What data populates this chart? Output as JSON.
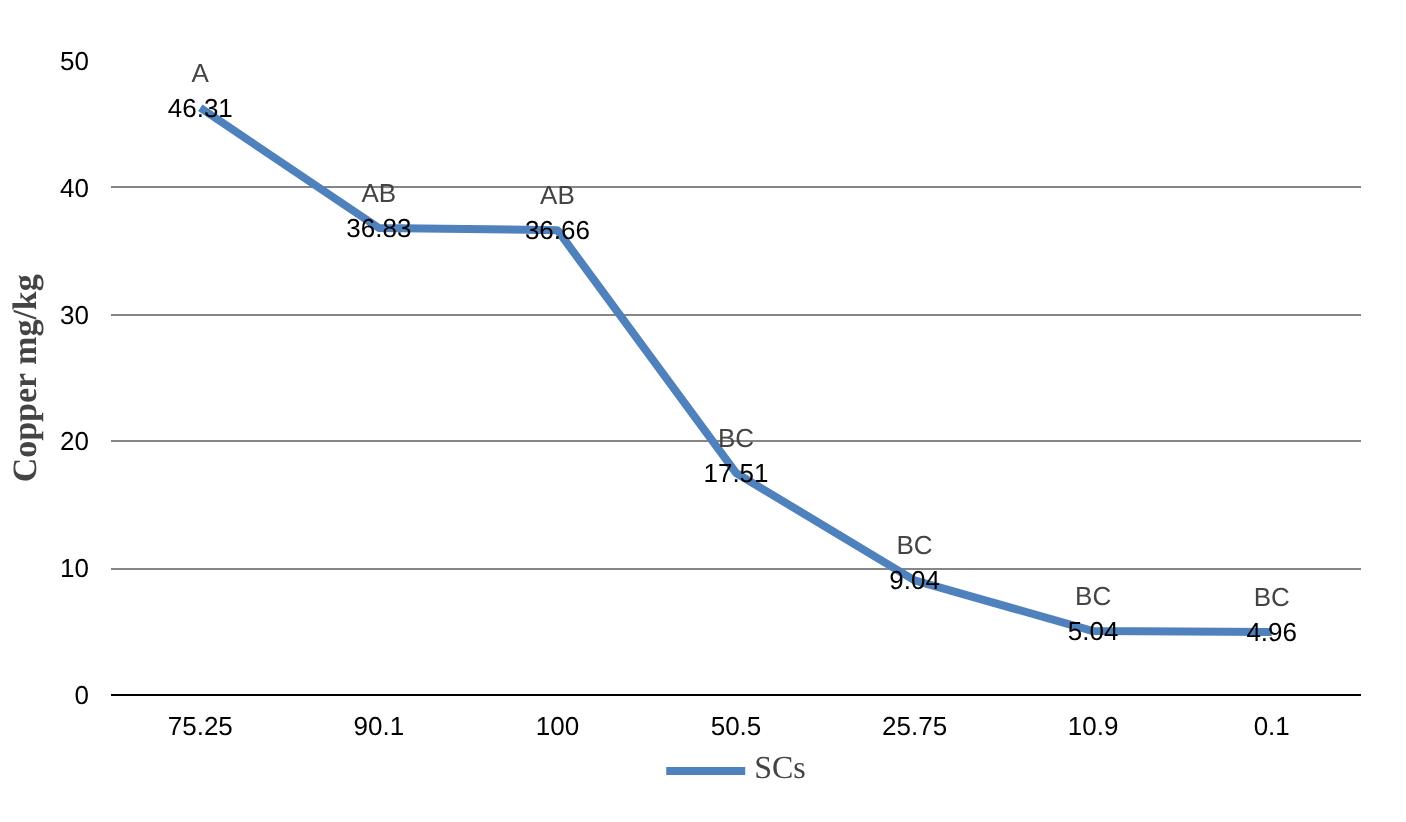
{
  "chart_data": {
    "type": "line",
    "ylabel": "Copper mg/kg",
    "categories": [
      "75.25",
      "90.1",
      "100",
      "50.5",
      "25.75",
      "10.9",
      "0.1"
    ],
    "series": [
      {
        "name": "SCs",
        "color": "#4f81bd",
        "values": [
          46.31,
          36.83,
          36.66,
          17.51,
          9.04,
          5.04,
          4.96
        ]
      }
    ],
    "ylim": [
      0,
      50
    ],
    "yticks": [
      0,
      10,
      20,
      30,
      40,
      50
    ],
    "grid": "y",
    "legend": "bottom",
    "data_labels": true,
    "annotations": [
      {
        "text": "A",
        "x": "75.25",
        "y": 46.31
      },
      {
        "text": "AB",
        "x": "90.1",
        "y": 36.83
      },
      {
        "text": "AB",
        "x": "100",
        "y": 36.66
      },
      {
        "text": "BC",
        "x": "50.5",
        "y": 17.51
      },
      {
        "text": "BC",
        "x": "25.75",
        "y": 9.04
      },
      {
        "text": "BC",
        "x": "10.9",
        "y": 5.04
      },
      {
        "text": "BC",
        "x": "0.1",
        "y": 4.96
      }
    ]
  }
}
